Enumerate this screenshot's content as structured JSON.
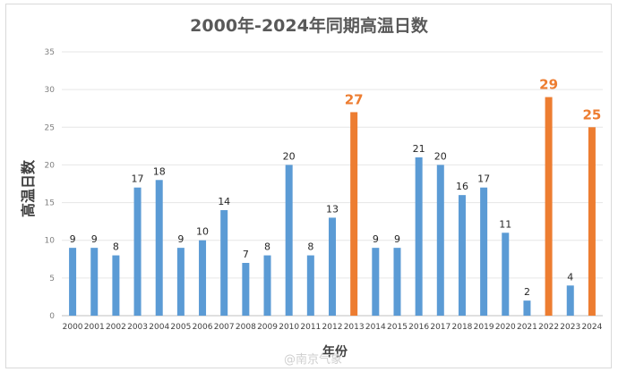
{
  "chart_data": {
    "type": "bar",
    "title": "2000年-2024年同期高温日数",
    "xlabel": "年份",
    "ylabel": "高温日数",
    "ylim": [
      0,
      35
    ],
    "yticks": [
      0,
      5,
      10,
      15,
      20,
      25,
      30,
      35
    ],
    "grid": true,
    "legend": "none",
    "categories": [
      "2000",
      "2001",
      "2002",
      "2003",
      "2004",
      "2005",
      "2006",
      "2007",
      "2008",
      "2009",
      "2010",
      "2011",
      "2012",
      "2013",
      "2014",
      "2015",
      "2016",
      "2017",
      "2018",
      "2019",
      "2020",
      "2021",
      "2022",
      "2023",
      "2024"
    ],
    "values": [
      9,
      9,
      8,
      17,
      18,
      9,
      10,
      14,
      7,
      8,
      20,
      8,
      13,
      27,
      9,
      9,
      21,
      20,
      16,
      17,
      11,
      2,
      29,
      4,
      25
    ],
    "highlight": [
      "2013",
      "2022",
      "2024"
    ],
    "colors": {
      "normal": "#5b9bd5",
      "highlight": "#ed7d31"
    }
  },
  "watermark": "@南京气象"
}
